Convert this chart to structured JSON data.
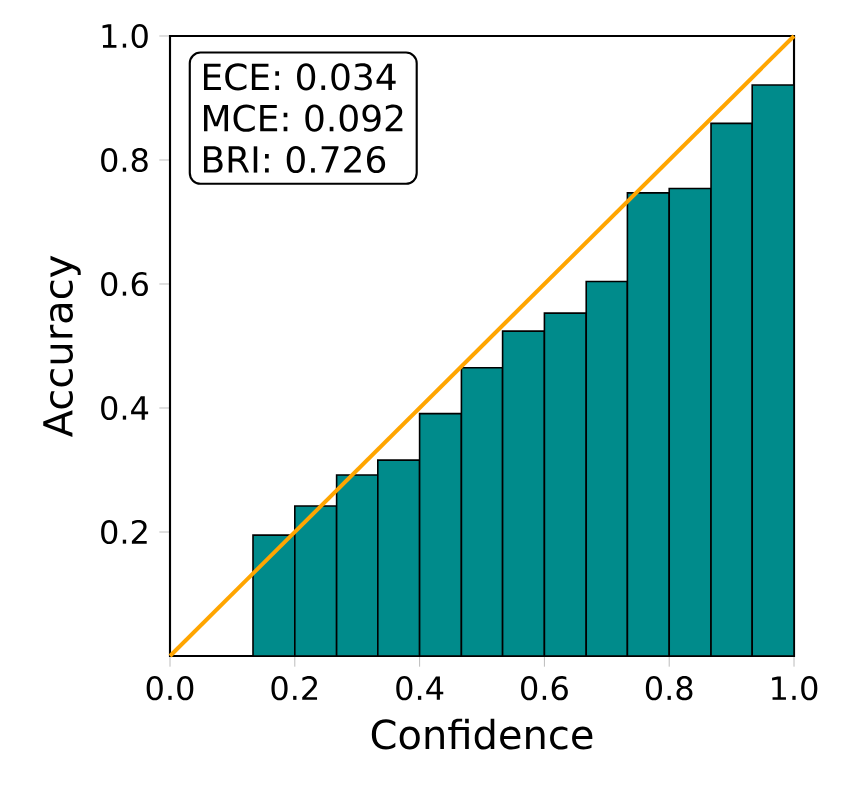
{
  "chart_data": {
    "type": "histogram",
    "xlabel": "Confidence",
    "ylabel": "Accuracy",
    "xlim": [
      0,
      1
    ],
    "ylim": [
      0,
      1
    ],
    "xticks": [
      {
        "value": 0,
        "label": "0.0"
      },
      {
        "value": 0.2,
        "label": "0.2"
      },
      {
        "value": 0.4,
        "label": "0.4"
      },
      {
        "value": 0.6,
        "label": "0.6"
      },
      {
        "value": 0.8,
        "label": "0.8"
      },
      {
        "value": 1,
        "label": "1.0"
      }
    ],
    "yticks": [
      {
        "value": 0.2,
        "label": "0.2"
      },
      {
        "value": 0.4,
        "label": "0.4"
      },
      {
        "value": 0.6,
        "label": "0.6"
      },
      {
        "value": 0.8,
        "label": "0.8"
      },
      {
        "value": 1,
        "label": "1.0"
      }
    ],
    "series": [
      {
        "color": "#008b8b",
        "bins": [
          0.133,
          0.2,
          0.267,
          0.333,
          0.4,
          0.467,
          0.533,
          0.6,
          0.667,
          0.733,
          0.8,
          0.867,
          0.933,
          1.0
        ],
        "values": [
          0.195,
          0.242,
          0.292,
          0.316,
          0.391,
          0.465,
          0.524,
          0.553,
          0.604,
          0.747,
          0.754,
          0.859,
          0.921
        ]
      },
      {
        "type": "line",
        "color": "#ffa500",
        "x": [
          0,
          1
        ],
        "values": [
          0,
          1
        ]
      }
    ],
    "annotations": [
      "ECE:  0.034",
      "MCE: 0.092",
      "BRI:  0.726"
    ],
    "grid": false
  }
}
